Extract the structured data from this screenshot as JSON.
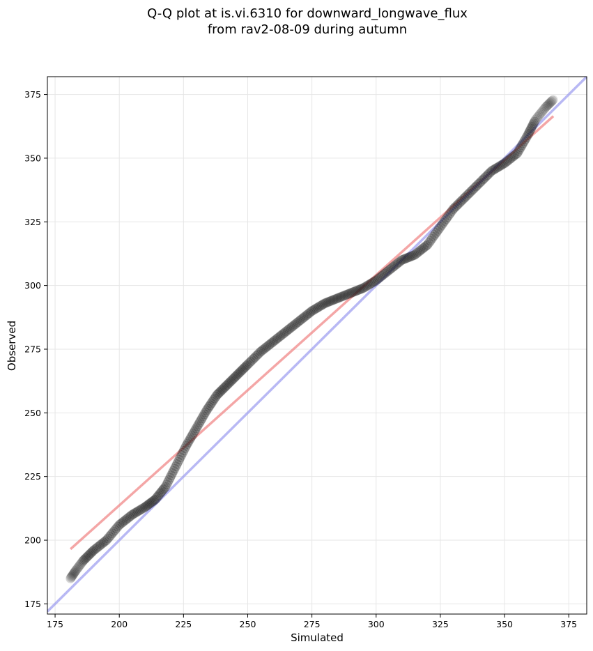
{
  "chart_data": {
    "type": "scatter",
    "title": "Q-Q plot at is.vi.6310 for downward_longwave_flux",
    "subtitle": "from rav2-08-09 during autumn",
    "xlabel": "Simulated",
    "ylabel": "Observed",
    "xlim": [
      172,
      382
    ],
    "ylim": [
      171,
      382
    ],
    "x_ticks": [
      "175",
      "200",
      "225",
      "250",
      "275",
      "300",
      "325",
      "350",
      "375"
    ],
    "y_ticks": [
      "175",
      "200",
      "225",
      "250",
      "275",
      "300",
      "325",
      "350",
      "375"
    ],
    "grid": true,
    "quantile_curve": {
      "x": [
        181,
        183,
        186,
        190,
        195,
        200,
        205,
        210,
        214,
        218,
        222,
        226,
        230,
        234,
        238,
        242,
        246,
        250,
        255,
        260,
        265,
        270,
        275,
        280,
        285,
        290,
        295,
        300,
        305,
        310,
        315,
        320,
        325,
        330,
        335,
        340,
        345,
        350,
        355,
        359,
        362,
        366,
        369
      ],
      "y": [
        185,
        188,
        192,
        196,
        200,
        206,
        210,
        213,
        216,
        221,
        229,
        237,
        244,
        251,
        257,
        261,
        265,
        269,
        274,
        278,
        282,
        286,
        290,
        293,
        295,
        297,
        299,
        302,
        306,
        310,
        312,
        316,
        323,
        330,
        335,
        340,
        345,
        348,
        352,
        359,
        365,
        370,
        373
      ]
    },
    "series": [
      {
        "name": "",
        "type": "line",
        "x": [
          181,
          369
        ],
        "y": [
          196.5,
          366.5
        ],
        "color": "#f08080"
      },
      {
        "name": "",
        "type": "line",
        "x": [
          172,
          382
        ],
        "y": [
          172,
          382
        ],
        "color": "#9a9af0"
      }
    ],
    "point_color": "#1a1a1a"
  }
}
